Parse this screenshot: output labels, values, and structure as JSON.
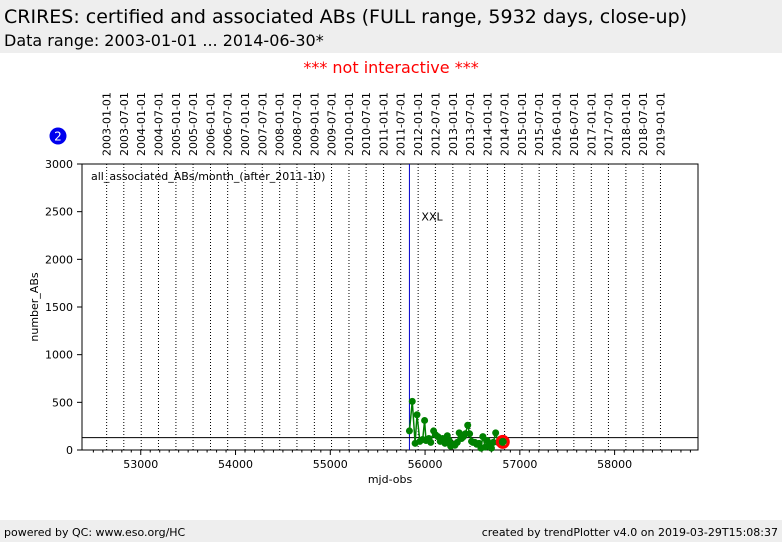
{
  "header": {
    "title": "CRIRES: certified and associated ABs (FULL range, 5932 days, close-up)",
    "subtitle": "Data range: 2003-01-01 ... 2014-06-30*"
  },
  "notice": "*** not interactive ***",
  "badge": "2",
  "footer": {
    "left": "powered by QC: www.eso.org/HC",
    "right": "created by trendPlotter v4.0 on 2019-03-29T15:08:37"
  },
  "colors": {
    "series": "#008000",
    "marker": "#ff0000",
    "vline": "#0000cc",
    "badge": "#0000ee"
  },
  "chart_data": {
    "type": "line",
    "xlabel": "mjd-obs",
    "ylabel": "number_ABs",
    "xlim": [
      52380,
      58880
    ],
    "ylim": [
      0,
      3000
    ],
    "xticks": [
      53000,
      54000,
      55000,
      56000,
      57000,
      58000
    ],
    "yticks": [
      0,
      500,
      1000,
      1500,
      2000,
      2500,
      3000
    ],
    "date_ticks": [
      {
        "label": "2003-01-01",
        "mjd": 52640
      },
      {
        "label": "2003-07-01",
        "mjd": 52821
      },
      {
        "label": "2004-01-01",
        "mjd": 53005
      },
      {
        "label": "2004-07-01",
        "mjd": 53187
      },
      {
        "label": "2005-01-01",
        "mjd": 53371
      },
      {
        "label": "2005-07-01",
        "mjd": 53552
      },
      {
        "label": "2006-01-01",
        "mjd": 53736
      },
      {
        "label": "2006-07-01",
        "mjd": 53917
      },
      {
        "label": "2007-01-01",
        "mjd": 54101
      },
      {
        "label": "2007-07-01",
        "mjd": 54282
      },
      {
        "label": "2008-01-01",
        "mjd": 54466
      },
      {
        "label": "2008-07-01",
        "mjd": 54648
      },
      {
        "label": "2009-01-01",
        "mjd": 54832
      },
      {
        "label": "2009-07-01",
        "mjd": 55013
      },
      {
        "label": "2010-01-01",
        "mjd": 55197
      },
      {
        "label": "2010-07-01",
        "mjd": 55378
      },
      {
        "label": "2011-01-01",
        "mjd": 55562
      },
      {
        "label": "2011-07-01",
        "mjd": 55743
      },
      {
        "label": "2012-01-01",
        "mjd": 55927
      },
      {
        "label": "2012-07-01",
        "mjd": 56109
      },
      {
        "label": "2013-01-01",
        "mjd": 56293
      },
      {
        "label": "2013-07-01",
        "mjd": 56474
      },
      {
        "label": "2014-01-01",
        "mjd": 56658
      },
      {
        "label": "2014-07-01",
        "mjd": 56839
      },
      {
        "label": "2015-01-01",
        "mjd": 57023
      },
      {
        "label": "2015-07-01",
        "mjd": 57204
      },
      {
        "label": "2016-01-01",
        "mjd": 57388
      },
      {
        "label": "2016-07-01",
        "mjd": 57570
      },
      {
        "label": "2017-01-01",
        "mjd": 57754
      },
      {
        "label": "2017-07-01",
        "mjd": 57935
      },
      {
        "label": "2018-01-01",
        "mjd": 58119
      },
      {
        "label": "2018-07-01",
        "mjd": 58300
      },
      {
        "label": "2019-01-01",
        "mjd": 58484
      }
    ],
    "legend": "all_associated_ABs/month_(after_2011-10)",
    "annotation": {
      "text": "XXL",
      "x_mjd": 55835,
      "y": 2450
    },
    "vline_mjd": 55835,
    "hline_y": 130,
    "highlight": {
      "x": 56820,
      "y": 85
    },
    "series": [
      {
        "x": [
          55835,
          55865,
          55895,
          55915,
          55945,
          55975,
          55995,
          56010,
          56040,
          56060,
          56090,
          56110,
          56135,
          56160,
          56185,
          56210,
          56235,
          56255,
          56270,
          56290,
          56315,
          56340,
          56360,
          56385,
          56405,
          56425,
          56450,
          56470,
          56490,
          56505,
          56525,
          56545,
          56570,
          56590,
          56610,
          56635,
          56655,
          56680,
          56700,
          56720,
          56745,
          56770,
          56790,
          56810,
          56830
        ],
        "y": [
          200,
          510,
          70,
          370,
          90,
          110,
          310,
          100,
          120,
          80,
          200,
          160,
          140,
          90,
          120,
          70,
          150,
          100,
          40,
          60,
          50,
          80,
          180,
          120,
          140,
          170,
          260,
          170,
          90,
          80,
          80,
          60,
          70,
          20,
          140,
          30,
          100,
          50,
          20,
          80,
          180,
          80,
          110,
          60,
          90
        ]
      }
    ]
  }
}
